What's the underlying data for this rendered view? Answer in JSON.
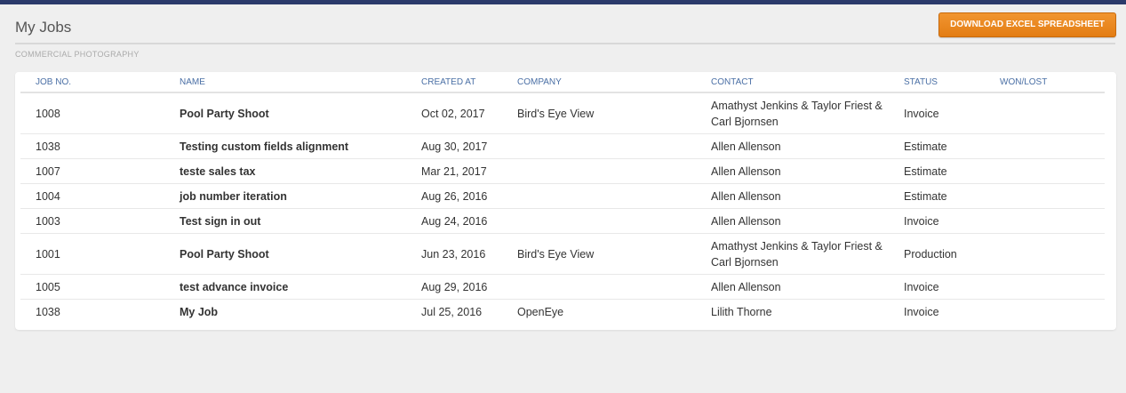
{
  "page": {
    "title": "My Jobs",
    "subtitle": "COMMERCIAL PHOTOGRAPHY",
    "download_label": "DOWNLOAD EXCEL SPREADSHEET"
  },
  "colors": {
    "top_bar": "#2b3a6b",
    "accent_orange": "#e8841a",
    "header_text": "#4a6fa5"
  },
  "table": {
    "headers": [
      "JOB NO.",
      "NAME",
      "CREATED AT",
      "COMPANY",
      "CONTACT",
      "STATUS",
      "WON/LOST"
    ],
    "rows": [
      {
        "job_no": "1008",
        "name": "Pool Party Shoot",
        "created_at": "Oct 02, 2017",
        "company": "Bird's Eye View",
        "contact_1": "Amathyst Jenkins & Taylor Friest &",
        "contact_2": "Carl Bjornsen",
        "status": "Invoice",
        "won_lost": ""
      },
      {
        "job_no": "1038",
        "name": "Testing custom fields alignment",
        "created_at": "Aug 30, 2017",
        "company": "",
        "contact_1": "Allen Allenson",
        "contact_2": "",
        "status": "Estimate",
        "won_lost": ""
      },
      {
        "job_no": "1007",
        "name": "teste sales tax",
        "created_at": "Mar 21, 2017",
        "company": "",
        "contact_1": "Allen Allenson",
        "contact_2": "",
        "status": "Estimate",
        "won_lost": ""
      },
      {
        "job_no": "1004",
        "name": "job number iteration",
        "created_at": "Aug 26, 2016",
        "company": "",
        "contact_1": "Allen Allenson",
        "contact_2": "",
        "status": "Estimate",
        "won_lost": ""
      },
      {
        "job_no": "1003",
        "name": "Test sign in out",
        "created_at": "Aug 24, 2016",
        "company": "",
        "contact_1": "Allen Allenson",
        "contact_2": "",
        "status": "Invoice",
        "won_lost": ""
      },
      {
        "job_no": "1001",
        "name": "Pool Party Shoot",
        "created_at": "Jun 23, 2016",
        "company": "Bird's Eye View",
        "contact_1": "Amathyst Jenkins & Taylor Friest &",
        "contact_2": "Carl Bjornsen",
        "status": "Production",
        "won_lost": ""
      },
      {
        "job_no": "1005",
        "name": "test advance invoice",
        "created_at": "Aug 29, 2016",
        "company": "",
        "contact_1": "Allen Allenson",
        "contact_2": "",
        "status": "Invoice",
        "won_lost": ""
      },
      {
        "job_no": "1038",
        "name": "My Job",
        "created_at": "Jul 25, 2016",
        "company": "OpenEye",
        "contact_1": "Lilith Thorne",
        "contact_2": "",
        "status": "Invoice",
        "won_lost": ""
      }
    ]
  }
}
